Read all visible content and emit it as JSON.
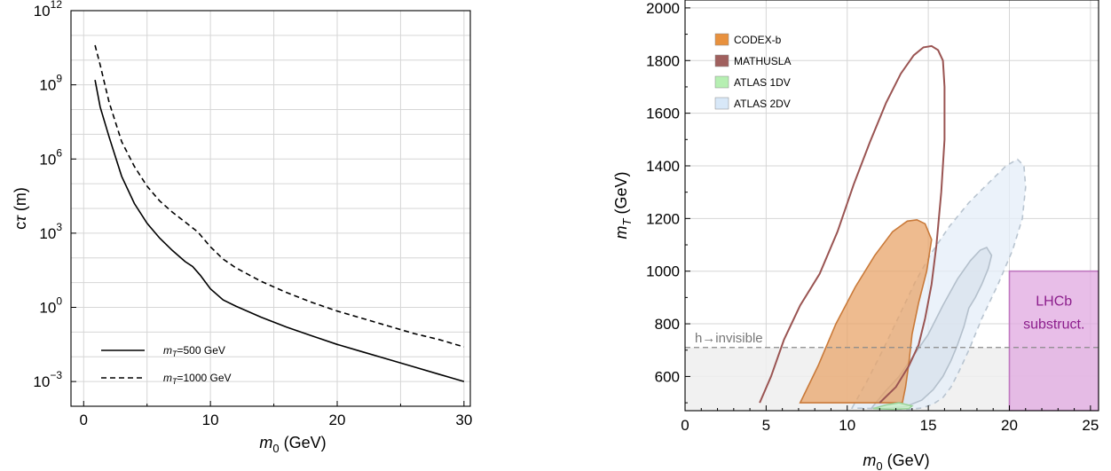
{
  "chart_data": [
    {
      "type": "line",
      "xlabel_main": "m",
      "xlabel_sub": "0",
      "xlabel_unit": " (GeV)",
      "ylabel_main": "c",
      "ylabel_tau": "τ",
      "ylabel_unit": " (m)",
      "xlim": [
        -1,
        30.5
      ],
      "ylim_log10": [
        -4,
        12
      ],
      "log_y": true,
      "grid": true,
      "legend_position": "bottom-left",
      "x_ticks": [
        0,
        10,
        20,
        30
      ],
      "x_tick_labels": [
        "0",
        "10",
        "20",
        "30"
      ],
      "y_ticks_log10": [
        -3,
        0,
        3,
        6,
        9,
        12
      ],
      "y_tick_labels": [
        {
          "base": "10",
          "exp": "−3"
        },
        {
          "base": "10",
          "exp": "0"
        },
        {
          "base": "10",
          "exp": "3"
        },
        {
          "base": "10",
          "exp": "6"
        },
        {
          "base": "10",
          "exp": "9"
        },
        {
          "base": "10",
          "exp": "12"
        }
      ],
      "series": [
        {
          "name_main": "m",
          "name_sub": "T",
          "name_rest": "=500 GeV",
          "style": "solid",
          "x": [
            0.9,
            1.3,
            2,
            3,
            4,
            5,
            6,
            7,
            8,
            8.6,
            9.2,
            10,
            11,
            12,
            14,
            16,
            18,
            20,
            22,
            24,
            26,
            28,
            30
          ],
          "log10_ctau": [
            9.2,
            8.1,
            6.9,
            5.3,
            4.2,
            3.4,
            2.8,
            2.3,
            1.85,
            1.65,
            1.3,
            0.75,
            0.3,
            0.05,
            -0.4,
            -0.8,
            -1.15,
            -1.5,
            -1.8,
            -2.1,
            -2.4,
            -2.7,
            -3.0
          ]
        },
        {
          "name_main": "m",
          "name_sub": "T",
          "name_rest": "=1000 GeV",
          "style": "dashed",
          "x": [
            0.9,
            1.3,
            2,
            3,
            4,
            5,
            6,
            7,
            8,
            9,
            10,
            11,
            12,
            14,
            16,
            18,
            20,
            22,
            24,
            26,
            28,
            30
          ],
          "log10_ctau": [
            10.6,
            9.8,
            8.3,
            6.7,
            5.7,
            4.9,
            4.3,
            3.85,
            3.45,
            3.05,
            2.45,
            1.95,
            1.6,
            1.05,
            0.6,
            0.2,
            -0.15,
            -0.45,
            -0.75,
            -1.05,
            -1.3,
            -1.6
          ]
        }
      ]
    },
    {
      "type": "area",
      "xlabel_main": "m",
      "xlabel_sub": "0",
      "xlabel_unit": " (GeV)",
      "ylabel_main": "m",
      "ylabel_sub": "T",
      "ylabel_unit": " (GeV)",
      "xlim": [
        0,
        25.5
      ],
      "ylim": [
        470,
        2030
      ],
      "grid": true,
      "legend_position": "top-left",
      "x_ticks": [
        0,
        5,
        10,
        15,
        20,
        25
      ],
      "x_tick_labels": [
        "0",
        "5",
        "10",
        "15",
        "20",
        "25"
      ],
      "y_ticks": [
        600,
        800,
        1000,
        1200,
        1400,
        1600,
        1800,
        2000
      ],
      "y_tick_labels": [
        "600",
        "800",
        "1000",
        "1200",
        "1400",
        "1600",
        "1800",
        "2000"
      ],
      "legend": [
        {
          "label": "CODEX-b",
          "color": "#e8913e"
        },
        {
          "label": "MATHUSLA",
          "color": "#a0605e"
        },
        {
          "label": "ATLAS 1DV",
          "color": "#b6efb2"
        },
        {
          "label": "ATLAS 2DV",
          "color": "#d8e8f8"
        }
      ],
      "regions": [
        {
          "name": "ATLAS 2DV",
          "fill": "#e4eef8",
          "stroke": "#b8c4d0",
          "dashed": true,
          "x": [
            10.3,
            11.2,
            12.2,
            13.2,
            14.2,
            15.2,
            16.3,
            17.5,
            18.8,
            19.8,
            20.5,
            20.9,
            21.0,
            20.8,
            20.2,
            19.3,
            18.3,
            17.5,
            16.9,
            16.4,
            15.9,
            15.3,
            14.6,
            13.8,
            10.3
          ],
          "y": [
            480,
            580,
            700,
            830,
            960,
            1070,
            1170,
            1260,
            1340,
            1400,
            1425,
            1400,
            1320,
            1200,
            1080,
            950,
            820,
            700,
            620,
            560,
            520,
            495,
            480,
            475,
            480
          ]
        },
        {
          "name": "ATLAS 2DV (inner)",
          "fill": "#d8e2ec",
          "stroke": "#b4c0cc",
          "dashed": false,
          "x": [
            11.5,
            12.3,
            13.2,
            14.1,
            15.0,
            15.9,
            16.8,
            17.6,
            18.2,
            18.6,
            18.9,
            18.7,
            18.3,
            17.9,
            17.5,
            17.2,
            16.8,
            16.4,
            15.9,
            15.3,
            14.6,
            13.6,
            12.3,
            11.5
          ],
          "y": [
            480,
            540,
            600,
            680,
            760,
            870,
            970,
            1040,
            1080,
            1090,
            1060,
            1010,
            950,
            900,
            860,
            790,
            720,
            660,
            600,
            550,
            510,
            485,
            478,
            480
          ]
        },
        {
          "name": "CODEX-b",
          "fill": "#e8a46a",
          "stroke": "#c97a3a",
          "dashed": false,
          "x": [
            7.1,
            8.2,
            9.3,
            10.5,
            11.7,
            12.8,
            13.7,
            14.3,
            14.8,
            15.2,
            14.9,
            14.4,
            14.0,
            13.8,
            13.6,
            13.4,
            7.1
          ],
          "y": [
            500,
            640,
            800,
            940,
            1060,
            1150,
            1190,
            1195,
            1180,
            1120,
            1000,
            880,
            760,
            650,
            560,
            500,
            500
          ]
        },
        {
          "name": "ATLAS 1DV",
          "fill": "#c8f2c4",
          "stroke": "#9ad49a",
          "dashed": false,
          "x": [
            11.6,
            12.4,
            13.2,
            14.0,
            13.8,
            12.8,
            11.6
          ],
          "y": [
            478,
            492,
            500,
            488,
            478,
            475,
            478
          ]
        },
        {
          "name": "LHCb substruct.",
          "fill": "#e0a8e0",
          "stroke": "#c078c0",
          "dashed": false,
          "x": [
            20,
            25.5,
            25.5,
            20
          ],
          "y": [
            470,
            470,
            1000,
            1000
          ]
        },
        {
          "name": "h→invisible",
          "fill": "#efefef",
          "stroke": "none",
          "dashed": false,
          "x": [
            0,
            25.5,
            25.5,
            0
          ],
          "y": [
            470,
            470,
            710,
            710
          ]
        }
      ],
      "curves": [
        {
          "name": "MATHUSLA",
          "stroke": "#9a5452",
          "x": [
            4.6,
            5.3,
            6.1,
            7.1,
            8.3,
            9.4,
            10.4,
            11.4,
            12.4,
            13.3,
            14.1,
            14.7,
            15.2,
            15.6,
            15.9,
            16.0,
            16.0,
            15.8,
            15.5,
            15.2,
            14.8,
            14.4,
            13.8,
            13.0,
            12.0
          ],
          "y": [
            500,
            600,
            740,
            870,
            990,
            1150,
            1330,
            1490,
            1640,
            1750,
            1820,
            1850,
            1855,
            1840,
            1800,
            1700,
            1500,
            1300,
            1100,
            950,
            820,
            720,
            640,
            560,
            500
          ]
        }
      ],
      "annotations": [
        {
          "text": "h→invisible",
          "color": "#777777"
        },
        {
          "text_lines": [
            "LHCb",
            "substruct."
          ],
          "color": "#8c1e8c"
        }
      ],
      "h_invisible_y": 710
    }
  ]
}
